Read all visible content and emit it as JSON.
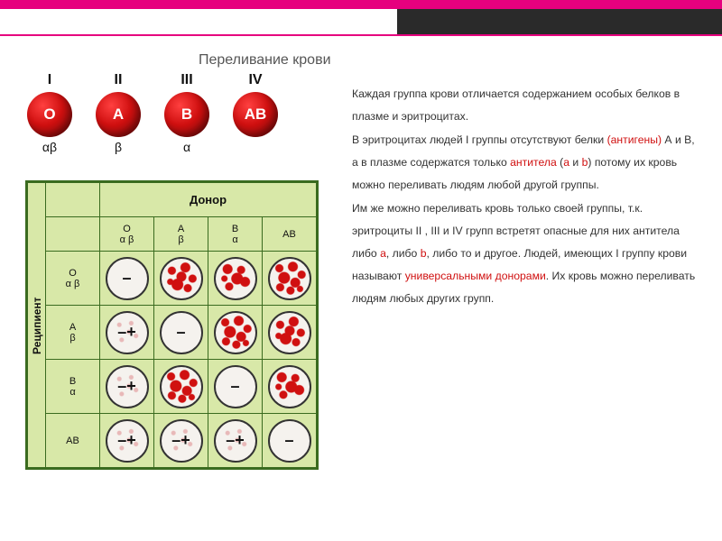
{
  "colors": {
    "accent_pink": "#e6007e",
    "dark_strip": "#2a2a2a",
    "blood_red": "#d01010",
    "grid_border": "#3a6b1f",
    "grid_bg": "#d8e8a8",
    "text": "#333333",
    "body_bg": "#ffffff",
    "circle_bg": "#f5f2ee"
  },
  "title": "Переливание крови",
  "blood_types": {
    "items": [
      {
        "roman": "I",
        "antigen": "O",
        "antibodies": "αβ"
      },
      {
        "roman": "II",
        "antigen": "A",
        "antibodies": "β"
      },
      {
        "roman": "III",
        "antigen": "B",
        "antibodies": "α"
      },
      {
        "roman": "IV",
        "antigen": "AB",
        "antibodies": ""
      }
    ]
  },
  "compatibility_grid": {
    "donor_label": "Донор",
    "recipient_label": "Реципиент",
    "columns": [
      {
        "top": "O",
        "bot": "α β"
      },
      {
        "top": "A",
        "bot": "β"
      },
      {
        "top": "B",
        "bot": "α"
      },
      {
        "top": "AB",
        "bot": ""
      }
    ],
    "rows": [
      {
        "top": "O",
        "bot": "α β"
      },
      {
        "top": "A",
        "bot": "β"
      },
      {
        "top": "B",
        "bot": "α"
      },
      {
        "top": "AB",
        "bot": ""
      }
    ],
    "legend_signs": {
      "compatible": "–",
      "partial": "–+"
    },
    "cells": [
      [
        {
          "sign": "–",
          "clump": "none"
        },
        {
          "sign": "",
          "clump": "A"
        },
        {
          "sign": "",
          "clump": "B"
        },
        {
          "sign": "",
          "clump": "both"
        }
      ],
      [
        {
          "sign": "–+",
          "clump": "faint"
        },
        {
          "sign": "–",
          "clump": "none"
        },
        {
          "sign": "",
          "clump": "both"
        },
        {
          "sign": "",
          "clump": "A"
        }
      ],
      [
        {
          "sign": "–+",
          "clump": "faint"
        },
        {
          "sign": "",
          "clump": "both"
        },
        {
          "sign": "–",
          "clump": "none"
        },
        {
          "sign": "",
          "clump": "B"
        }
      ],
      [
        {
          "sign": "–+",
          "clump": "faint"
        },
        {
          "sign": "–+",
          "clump": "faint"
        },
        {
          "sign": "–+",
          "clump": "faint"
        },
        {
          "sign": "–",
          "clump": "none"
        }
      ]
    ]
  },
  "paragraphs": {
    "p1a": "Каждая группа крови отличается содержанием особых белков в плазме и эритроцитах.",
    "p2a": "В эритроцитах людей I группы отсутствуют белки ",
    "p2b": "(антигены)",
    "p2c": " А и В, а в плазме содержатся только ",
    "p2d": "антитела",
    "p2e": " (",
    "p2f": "а",
    "p2g": " и ",
    "p2h": "b",
    "p2i": ") потому их кровь можно переливать людям любой другой группы.",
    "p3a": "Им же можно переливать кровь только своей группы, т.к. эритроциты II , III и IV групп встретят опасные для них антитела либо ",
    "p3b": "а",
    "p3c": ", либо ",
    "p3d": "b",
    "p3e": ", либо то и другое. Людей, имеющих I группу крови называют ",
    "p3f": "универсальными донорами",
    "p3g": ". Их кровь можно переливать людям любых других групп."
  }
}
